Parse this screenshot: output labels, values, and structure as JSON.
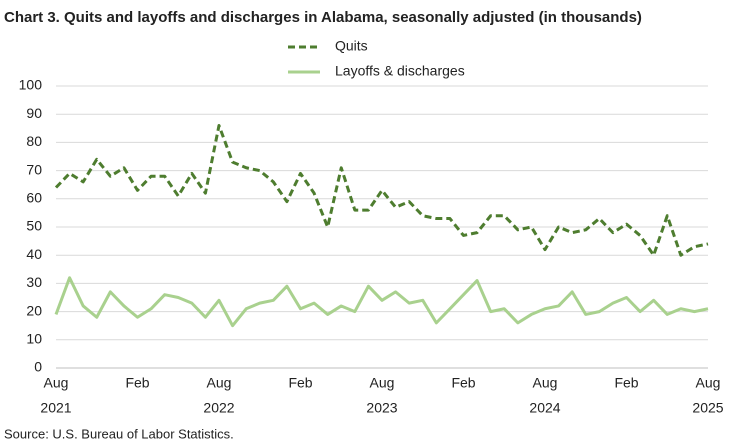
{
  "chart_data": {
    "type": "line",
    "title": "Chart 3. Quits and layoffs and discharges in Alabama, seasonally adjusted (in thousands)",
    "source": "Source: U.S. Bureau of Labor Statistics.",
    "categories": [
      "Aug",
      null,
      null,
      null,
      null,
      null,
      "Feb",
      null,
      null,
      null,
      null,
      null,
      "Aug",
      null,
      null,
      null,
      null,
      null,
      "Feb",
      null,
      null,
      null,
      null,
      null,
      "Aug",
      null,
      null,
      null,
      null,
      null,
      "Feb",
      null,
      null,
      null,
      null,
      null,
      "Aug",
      null,
      null,
      null,
      null,
      null,
      "Feb",
      null,
      null,
      null,
      null,
      null,
      "Aug"
    ],
    "year_labels": [
      "2021",
      null,
      null,
      null,
      null,
      null,
      null,
      null,
      null,
      null,
      null,
      null,
      "2022",
      null,
      null,
      null,
      null,
      null,
      null,
      null,
      null,
      null,
      null,
      null,
      "2023",
      null,
      null,
      null,
      null,
      null,
      null,
      null,
      null,
      null,
      null,
      null,
      "2024",
      null,
      null,
      null,
      null,
      null,
      null,
      null,
      null,
      null,
      null,
      null,
      "2025"
    ],
    "series": [
      {
        "name": "Quits",
        "color": "#4e7d2f",
        "dashed": true,
        "values": [
          64,
          69,
          66,
          74,
          68,
          71,
          63,
          68,
          68,
          61,
          69,
          62,
          86,
          73,
          71,
          70,
          66,
          59,
          69,
          62,
          50,
          71,
          56,
          56,
          63,
          57,
          59,
          54,
          53,
          53,
          47,
          48,
          54,
          54,
          49,
          50,
          42,
          50,
          48,
          49,
          53,
          48,
          51,
          47,
          40,
          54,
          40,
          43,
          44
        ]
      },
      {
        "name": "Layoffs & discharges",
        "color": "#a9d18e",
        "dashed": false,
        "values": [
          19,
          32,
          22,
          18,
          27,
          22,
          18,
          21,
          26,
          25,
          23,
          18,
          24,
          15,
          21,
          23,
          24,
          29,
          21,
          23,
          19,
          22,
          20,
          29,
          24,
          27,
          23,
          24,
          16,
          21,
          26,
          31,
          20,
          21,
          16,
          19,
          21,
          22,
          27,
          19,
          20,
          23,
          25,
          20,
          24,
          19,
          21,
          20,
          21
        ]
      }
    ],
    "ylim": [
      0,
      100
    ],
    "yticks": [
      0,
      10,
      20,
      30,
      40,
      50,
      60,
      70,
      80,
      90,
      100
    ],
    "grid": true
  }
}
